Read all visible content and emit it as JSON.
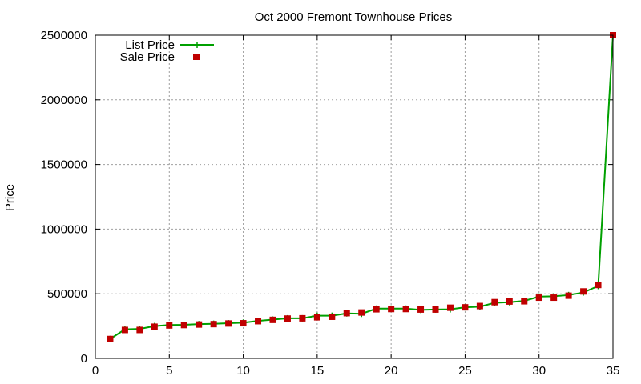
{
  "chart_data": {
    "type": "line",
    "title": "Oct 2000 Fremont Townhouse Prices",
    "xlabel": "",
    "ylabel": "Price",
    "xlim": [
      0,
      35
    ],
    "ylim": [
      0,
      2500000
    ],
    "xticks": [
      0,
      5,
      10,
      15,
      20,
      25,
      30,
      35
    ],
    "yticks": [
      0,
      500000,
      1000000,
      1500000,
      2000000,
      2500000
    ],
    "grid": true,
    "legend_position": "top-left",
    "x": [
      1,
      2,
      3,
      4,
      5,
      6,
      7,
      8,
      9,
      10,
      11,
      12,
      13,
      14,
      15,
      16,
      17,
      18,
      19,
      20,
      21,
      22,
      23,
      24,
      25,
      26,
      27,
      28,
      29,
      30,
      31,
      32,
      33,
      34,
      35
    ],
    "series": [
      {
        "name": "List Price",
        "color": "#00a000",
        "marker": "plus",
        "values": [
          150000,
          225000,
          228000,
          250000,
          258000,
          260000,
          265000,
          268000,
          272000,
          276000,
          290000,
          300000,
          310000,
          310000,
          330000,
          330000,
          348000,
          345000,
          385000,
          385000,
          385000,
          375000,
          378000,
          380000,
          395000,
          400000,
          430000,
          435000,
          445000,
          478000,
          480000,
          490000,
          510000,
          560000,
          2500000
        ]
      },
      {
        "name": "Sale Price",
        "color": "#c00000",
        "marker": "square",
        "values": [
          150000,
          220000,
          220000,
          245000,
          255000,
          258000,
          262000,
          265000,
          270000,
          272000,
          288000,
          298000,
          308000,
          310000,
          318000,
          322000,
          350000,
          355000,
          380000,
          382000,
          382000,
          378000,
          378000,
          392000,
          395000,
          405000,
          435000,
          440000,
          442000,
          470000,
          470000,
          485000,
          518000,
          568000,
          2500000
        ]
      }
    ]
  }
}
